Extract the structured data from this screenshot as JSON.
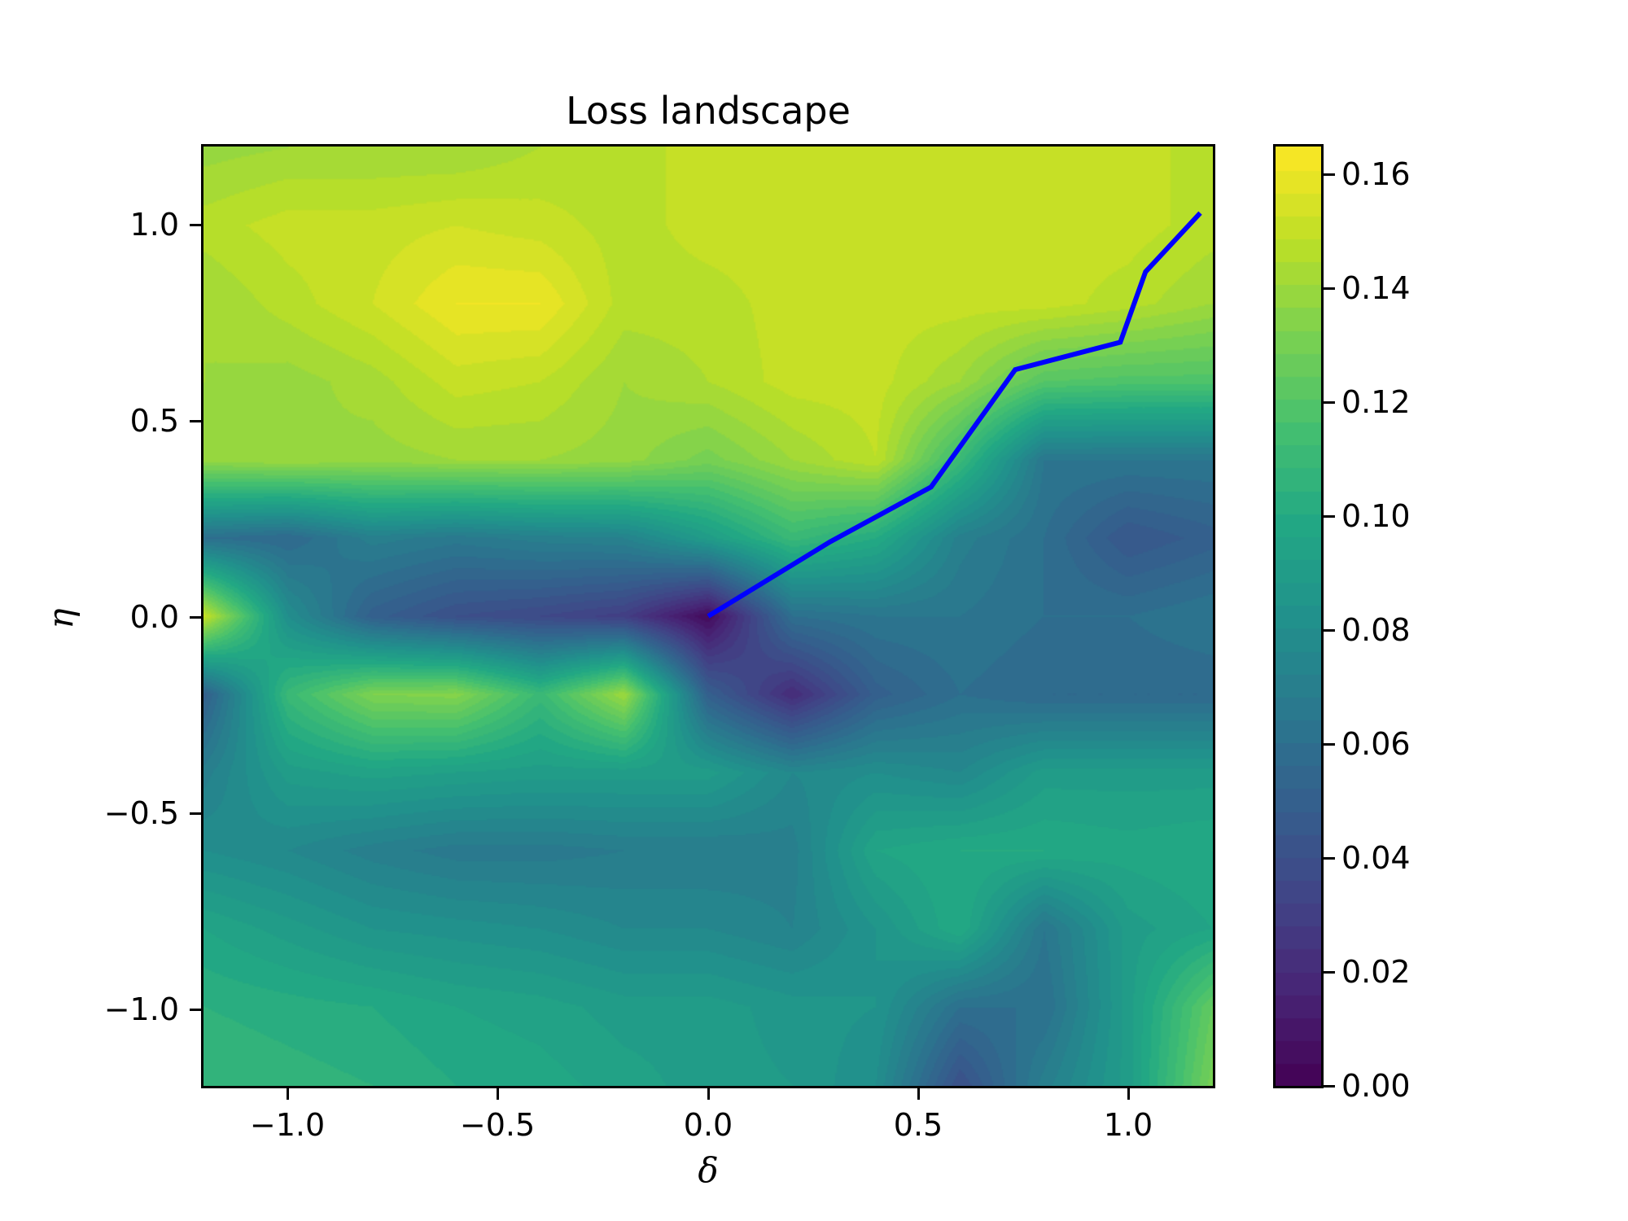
{
  "chart_data": {
    "type": "heatmap",
    "subtype": "filled-contour",
    "title": "Loss landscape",
    "xlabel": "δ",
    "ylabel": "η",
    "xlim": [
      -1.2,
      1.2
    ],
    "ylim": [
      -1.2,
      1.2
    ],
    "xticks": [
      -1.0,
      -0.5,
      0.0,
      0.5,
      1.0
    ],
    "xtick_labels": [
      "−1.0",
      "−0.5",
      "0.0",
      "0.5",
      "1.0"
    ],
    "yticks": [
      1.0,
      0.5,
      0.0,
      -0.5,
      -1.0
    ],
    "ytick_labels": [
      "1.0",
      "0.5",
      "0.0",
      "−0.5",
      "−1.0"
    ],
    "colormap": "viridis",
    "colorbar": {
      "range": [
        0.0,
        0.1648
      ],
      "level_step": 0.004,
      "ticks": [
        0.0,
        0.02,
        0.04,
        0.06,
        0.08,
        0.1,
        0.12,
        0.14,
        0.16
      ],
      "tick_labels": [
        "0.00",
        "0.02",
        "0.04",
        "0.06",
        "0.08",
        "0.10",
        "0.12",
        "0.14",
        "0.16"
      ]
    },
    "grid": {
      "x": [
        -1.2,
        -1.0,
        -0.8,
        -0.6,
        -0.4,
        -0.2,
        0.0,
        0.2,
        0.4,
        0.6,
        0.8,
        1.0,
        1.2
      ],
      "y": [
        1.2,
        1.0,
        0.8,
        0.6,
        0.4,
        0.2,
        0.0,
        -0.2,
        -0.4,
        -0.6,
        -0.8,
        -1.0,
        -1.2
      ],
      "z": [
        [
          0.138,
          0.14,
          0.14,
          0.14,
          0.144,
          0.146,
          0.15,
          0.15,
          0.15,
          0.15,
          0.15,
          0.15,
          0.146
        ],
        [
          0.146,
          0.15,
          0.15,
          0.152,
          0.15,
          0.146,
          0.15,
          0.15,
          0.15,
          0.15,
          0.15,
          0.15,
          0.146
        ],
        [
          0.14,
          0.146,
          0.152,
          0.16,
          0.16,
          0.146,
          0.146,
          0.15,
          0.15,
          0.15,
          0.15,
          0.146,
          0.14
        ],
        [
          0.14,
          0.138,
          0.142,
          0.15,
          0.148,
          0.14,
          0.144,
          0.15,
          0.15,
          0.14,
          0.12,
          0.118,
          0.118
        ],
        [
          0.138,
          0.14,
          0.138,
          0.14,
          0.14,
          0.138,
          0.13,
          0.14,
          0.148,
          0.11,
          0.064,
          0.064,
          0.064
        ],
        [
          0.06,
          0.056,
          0.07,
          0.066,
          0.07,
          0.072,
          0.09,
          0.11,
          0.1,
          0.07,
          0.06,
          0.044,
          0.05
        ],
        [
          0.15,
          0.08,
          0.05,
          0.04,
          0.036,
          0.03,
          0.004,
          0.06,
          0.064,
          0.064,
          0.06,
          0.06,
          0.064
        ],
        [
          0.05,
          0.11,
          0.132,
          0.134,
          0.11,
          0.14,
          0.05,
          0.02,
          0.05,
          0.06,
          0.056,
          0.056,
          0.056
        ],
        [
          0.07,
          0.09,
          0.094,
          0.092,
          0.09,
          0.09,
          0.09,
          0.076,
          0.08,
          0.076,
          0.09,
          0.09,
          0.09
        ],
        [
          0.08,
          0.076,
          0.07,
          0.066,
          0.066,
          0.068,
          0.068,
          0.07,
          0.096,
          0.1,
          0.1,
          0.098,
          0.1
        ],
        [
          0.096,
          0.09,
          0.084,
          0.082,
          0.08,
          0.076,
          0.076,
          0.072,
          0.084,
          0.1,
          0.064,
          0.09,
          0.096
        ],
        [
          0.104,
          0.102,
          0.1,
          0.096,
          0.094,
          0.09,
          0.09,
          0.086,
          0.084,
          0.06,
          0.06,
          0.09,
          0.124
        ],
        [
          0.108,
          0.106,
          0.104,
          0.1,
          0.098,
          0.094,
          0.09,
          0.088,
          0.08,
          0.04,
          0.07,
          0.09,
          0.13
        ]
      ]
    },
    "series": [
      {
        "name": "optimization trajectory",
        "type": "line",
        "color": "#0000ff",
        "x": [
          0.0,
          0.29,
          0.53,
          0.73,
          0.98,
          1.04,
          1.17
        ],
        "y": [
          0.0,
          0.19,
          0.33,
          0.63,
          0.7,
          0.88,
          1.03
        ]
      }
    ],
    "legend": null,
    "grid_lines": false
  },
  "colors": {
    "trajectory": "#0000ff",
    "axes": "#000000",
    "background": "#ffffff"
  }
}
